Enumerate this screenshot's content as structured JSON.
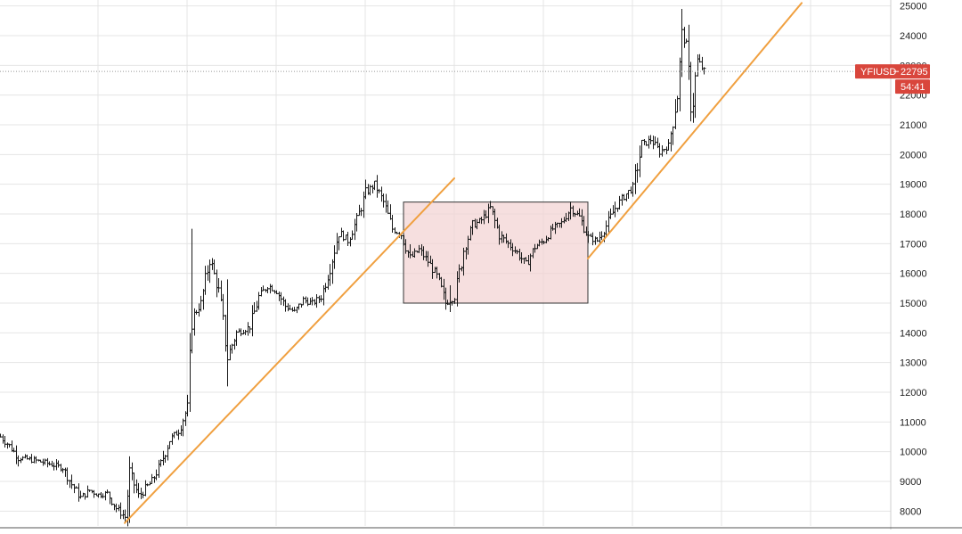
{
  "chart_data": {
    "type": "candlestick",
    "symbol": "YFIUSD",
    "last_price": "22795",
    "countdown": "54:41",
    "ylim": [
      7500,
      25200
    ],
    "y_ticks": [
      8000,
      9000,
      10000,
      11000,
      12000,
      13000,
      14000,
      15000,
      16000,
      17000,
      18000,
      19000,
      20000,
      21000,
      22000,
      23000,
      24000,
      25000
    ],
    "x_range": [
      0,
      100
    ],
    "x_grid": [
      11,
      21,
      31,
      41,
      51,
      61,
      71,
      81,
      91
    ],
    "grid": true,
    "colors": {
      "trendline": "#f0a040",
      "range_box_fill": "#f3d4d4",
      "range_box_stroke": "#333333",
      "badge": "#d9463c",
      "candles": "#1a1a1a",
      "grid": "#e4e4e4"
    },
    "path_waypoints": [
      {
        "x": 0,
        "y": 10500
      },
      {
        "x": 1,
        "y": 10200
      },
      {
        "x": 2,
        "y": 9800
      },
      {
        "x": 4,
        "y": 9700
      },
      {
        "x": 6,
        "y": 9550
      },
      {
        "x": 7,
        "y": 9450
      },
      {
        "x": 8,
        "y": 8900
      },
      {
        "x": 9,
        "y": 8450
      },
      {
        "x": 10,
        "y": 8700
      },
      {
        "x": 11,
        "y": 8550
      },
      {
        "x": 12,
        "y": 8600
      },
      {
        "x": 13,
        "y": 8100
      },
      {
        "x": 14,
        "y": 7800
      },
      {
        "x": 14.5,
        "y": 9300
      },
      {
        "x": 15.5,
        "y": 8500
      },
      {
        "x": 17,
        "y": 9000
      },
      {
        "x": 18,
        "y": 9600
      },
      {
        "x": 19,
        "y": 10400
      },
      {
        "x": 20,
        "y": 10700
      },
      {
        "x": 21,
        "y": 11500
      },
      {
        "x": 21.5,
        "y": 14500
      },
      {
        "x": 22.5,
        "y": 15000
      },
      {
        "x": 23.5,
        "y": 16500
      },
      {
        "x": 24.5,
        "y": 15400
      },
      {
        "x": 25.5,
        "y": 13200
      },
      {
        "x": 26.5,
        "y": 14000
      },
      {
        "x": 28,
        "y": 14200
      },
      {
        "x": 29,
        "y": 15200
      },
      {
        "x": 30,
        "y": 15600
      },
      {
        "x": 31,
        "y": 15400
      },
      {
        "x": 32,
        "y": 14900
      },
      {
        "x": 33,
        "y": 14700
      },
      {
        "x": 34,
        "y": 15100
      },
      {
        "x": 35,
        "y": 15000
      },
      {
        "x": 36,
        "y": 15200
      },
      {
        "x": 37,
        "y": 16200
      },
      {
        "x": 38,
        "y": 17400
      },
      {
        "x": 39,
        "y": 17100
      },
      {
        "x": 40,
        "y": 17800
      },
      {
        "x": 41,
        "y": 18700
      },
      {
        "x": 42,
        "y": 19000
      },
      {
        "x": 43,
        "y": 18400
      },
      {
        "x": 44,
        "y": 17500
      },
      {
        "x": 45,
        "y": 17300
      },
      {
        "x": 46,
        "y": 16500
      },
      {
        "x": 47,
        "y": 16800
      },
      {
        "x": 48,
        "y": 16400
      },
      {
        "x": 49,
        "y": 15900
      },
      {
        "x": 50,
        "y": 15000
      },
      {
        "x": 51,
        "y": 15200
      },
      {
        "x": 52,
        "y": 16800
      },
      {
        "x": 53,
        "y": 17600
      },
      {
        "x": 54,
        "y": 17800
      },
      {
        "x": 55,
        "y": 18200
      },
      {
        "x": 56,
        "y": 17300
      },
      {
        "x": 57,
        "y": 17000
      },
      {
        "x": 58,
        "y": 16700
      },
      {
        "x": 59,
        "y": 16300
      },
      {
        "x": 60,
        "y": 16900
      },
      {
        "x": 61,
        "y": 17100
      },
      {
        "x": 62,
        "y": 17500
      },
      {
        "x": 63,
        "y": 17700
      },
      {
        "x": 64,
        "y": 18200
      },
      {
        "x": 65,
        "y": 17900
      },
      {
        "x": 66,
        "y": 17200
      },
      {
        "x": 67,
        "y": 17100
      },
      {
        "x": 68,
        "y": 17600
      },
      {
        "x": 69,
        "y": 18200
      },
      {
        "x": 70,
        "y": 18600
      },
      {
        "x": 71,
        "y": 18900
      },
      {
        "x": 72,
        "y": 20300
      },
      {
        "x": 73,
        "y": 20500
      },
      {
        "x": 74,
        "y": 20100
      },
      {
        "x": 75,
        "y": 20300
      },
      {
        "x": 76,
        "y": 22000
      },
      {
        "x": 76.5,
        "y": 24000
      },
      {
        "x": 77,
        "y": 23700
      },
      {
        "x": 77.6,
        "y": 21300
      },
      {
        "x": 78.2,
        "y": 23200
      },
      {
        "x": 79,
        "y": 22795
      }
    ],
    "trendlines": [
      {
        "from": {
          "x": 14,
          "y": 7600
        },
        "to": {
          "x": 51,
          "y": 19200
        }
      },
      {
        "from": {
          "x": 66,
          "y": 16500
        },
        "to": {
          "x": 90,
          "y": 25100
        }
      }
    ],
    "range_box": {
      "x0": 45.3,
      "x1": 66,
      "y0": 15000,
      "y1": 18400
    }
  }
}
